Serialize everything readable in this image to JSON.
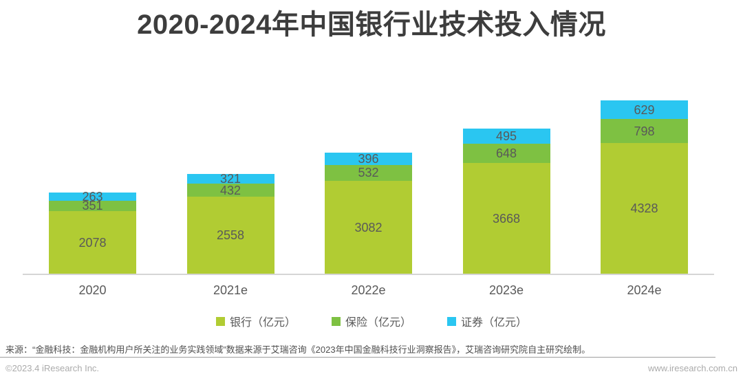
{
  "chart_data": {
    "type": "bar",
    "stacked": true,
    "title": "2020-2024年中国银行业技术投入情况",
    "categories": [
      "2020",
      "2021e",
      "2022e",
      "2023e",
      "2024e"
    ],
    "series": [
      {
        "key": "bank",
        "name": "银行（亿元）",
        "color": "#b1cc33",
        "values": [
          2078,
          2558,
          3082,
          3668,
          4328
        ]
      },
      {
        "key": "insurance",
        "name": "保险（亿元）",
        "color": "#7ec142",
        "values": [
          351,
          432,
          532,
          648,
          798
        ]
      },
      {
        "key": "securities",
        "name": "证券（亿元）",
        "color": "#2ac6f1",
        "values": [
          263,
          321,
          396,
          495,
          629
        ]
      }
    ],
    "xlabel": "",
    "ylabel": "",
    "legend_position": "bottom",
    "grid": false
  },
  "source_note": "来源：“金融科技：金融机构用户所关注的业务实践领域”数据来源于艾瑞咨询《2023年中国金融科技行业洞察报告》，艾瑞咨询研究院自主研究绘制。",
  "footer": {
    "copyright": "©2023.4 iResearch Inc.",
    "website": "www.iresearch.com.cn"
  },
  "colors": {
    "bank": "#b1cc33",
    "insurance": "#7ec142",
    "securities": "#2ac6f1",
    "axis_line": "#d5d5d5",
    "value_label_text": "#595959",
    "title_text": "#3d3d3d",
    "footer_text": "#ababab"
  }
}
